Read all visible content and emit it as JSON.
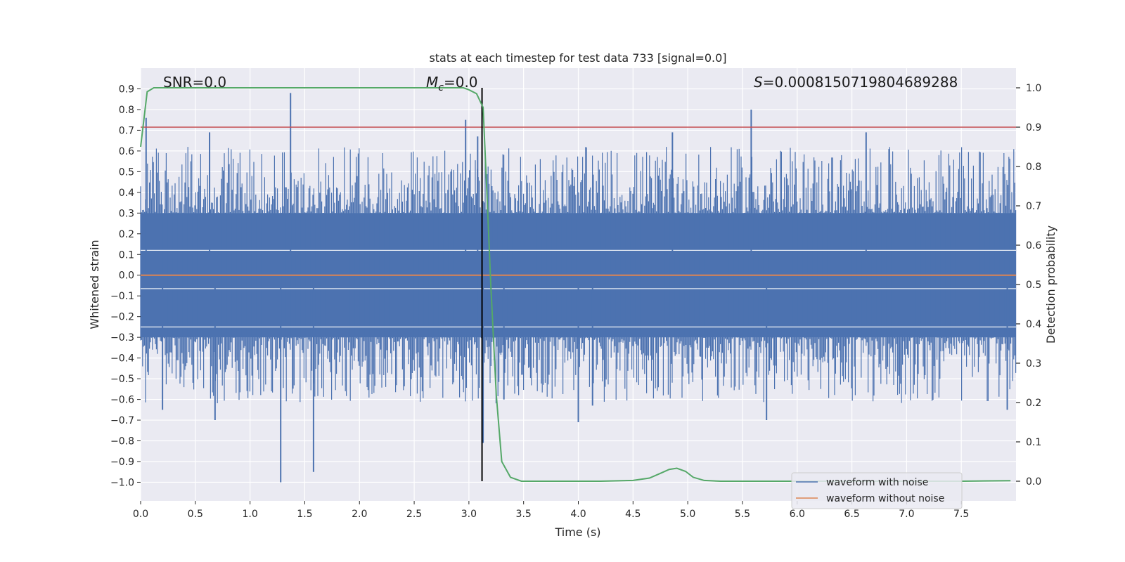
{
  "chart_data": {
    "type": "line",
    "title": "stats at each timestep for test data 733 [signal=0.0]",
    "xlabel": "Time (s)",
    "ylabel_left": "Whitened strain",
    "ylabel_right": "Detection probability",
    "xlim": [
      0,
      8
    ],
    "ylim_left": [
      -1.09,
      1.0
    ],
    "ylim_right": [
      -0.05,
      1.05
    ],
    "x_ticks": [
      "0.0",
      "0.5",
      "1.0",
      "1.5",
      "2.0",
      "2.5",
      "3.0",
      "3.5",
      "4.0",
      "4.5",
      "5.0",
      "5.5",
      "6.0",
      "6.5",
      "7.0",
      "7.5"
    ],
    "x_tick_values": [
      0,
      0.5,
      1,
      1.5,
      2,
      2.5,
      3,
      3.5,
      4,
      4.5,
      5,
      5.5,
      6,
      6.5,
      7,
      7.5
    ],
    "y_left_ticks": [
      "0.9",
      "0.8",
      "0.7",
      "0.6",
      "0.5",
      "0.4",
      "0.3",
      "0.2",
      "0.1",
      "0.0",
      "−0.1",
      "−0.2",
      "−0.3",
      "−0.4",
      "−0.5",
      "−0.6",
      "−0.7",
      "−0.8",
      "−0.9",
      "−1.0"
    ],
    "y_left_tick_values": [
      0.9,
      0.8,
      0.7,
      0.6,
      0.5,
      0.4,
      0.3,
      0.2,
      0.1,
      0.0,
      -0.1,
      -0.2,
      -0.3,
      -0.4,
      -0.5,
      -0.6,
      -0.7,
      -0.8,
      -0.9,
      -1.0
    ],
    "y_right_ticks": [
      "1.0",
      "0.9",
      "0.8",
      "0.7",
      "0.6",
      "0.5",
      "0.4",
      "0.3",
      "0.2",
      "0.1",
      "0.0"
    ],
    "y_right_tick_values": [
      1.0,
      0.9,
      0.8,
      0.7,
      0.6,
      0.5,
      0.4,
      0.3,
      0.2,
      0.1,
      0.0
    ],
    "series": [
      {
        "name": "waveform with noise",
        "color": "#4c72b0",
        "axis": "left",
        "description_values": "dense noise, core band approx +/-0.3, spikes up to 0.88 and down to -1.0",
        "band": [
          -0.3,
          0.3
        ],
        "spikes": [
          {
            "x": 1.37,
            "y": 0.88
          },
          {
            "x": 2.97,
            "y": 0.75
          },
          {
            "x": 3.08,
            "y": 0.67
          },
          {
            "x": 5.58,
            "y": 0.8
          },
          {
            "x": 0.05,
            "y": 0.76
          },
          {
            "x": 0.63,
            "y": 0.69
          },
          {
            "x": 4.86,
            "y": 0.69
          },
          {
            "x": 6.63,
            "y": 0.69
          },
          {
            "x": 1.28,
            "y": -1.0
          },
          {
            "x": 1.58,
            "y": -0.95
          },
          {
            "x": 3.13,
            "y": -0.81
          },
          {
            "x": 4.0,
            "y": -0.71
          },
          {
            "x": 5.72,
            "y": -0.7
          },
          {
            "x": 0.68,
            "y": -0.7
          },
          {
            "x": 0.2,
            "y": -0.65
          },
          {
            "x": 7.92,
            "y": -0.65
          },
          {
            "x": 3.32,
            "y": -0.6
          },
          {
            "x": 4.13,
            "y": -0.63
          }
        ]
      },
      {
        "name": "waveform without noise",
        "color": "#dd8452",
        "axis": "left",
        "x": [
          0,
          8
        ],
        "y": [
          0.0,
          0.0
        ]
      },
      {
        "name": "detection probability",
        "color": "#55a868",
        "axis": "right",
        "x": [
          0.0,
          0.03,
          0.06,
          0.12,
          0.2,
          0.5,
          1.0,
          1.5,
          2.0,
          2.5,
          2.85,
          2.95,
          3.0,
          3.07,
          3.13,
          3.17,
          3.2,
          3.25,
          3.3,
          3.38,
          3.48,
          3.6,
          3.8,
          4.2,
          4.5,
          4.65,
          4.75,
          4.83,
          4.9,
          4.98,
          5.05,
          5.15,
          5.3,
          5.6,
          6.0,
          6.5,
          7.0,
          7.5,
          7.95
        ],
        "y": [
          0.85,
          0.92,
          0.99,
          1.0,
          1.0,
          1.0,
          1.0,
          1.0,
          1.0,
          1.0,
          1.0,
          1.0,
          0.995,
          0.985,
          0.95,
          0.7,
          0.5,
          0.22,
          0.05,
          0.01,
          0.0,
          0.0,
          0.0,
          0.0,
          0.002,
          0.008,
          0.02,
          0.03,
          0.033,
          0.025,
          0.01,
          0.002,
          0.0,
          0.0,
          0.0,
          0.0,
          0.0,
          0.0,
          0.0015
        ]
      }
    ],
    "threshold": {
      "axis": "right",
      "y": 0.9,
      "color": "#c44e52"
    },
    "vertical_marker": {
      "x": 3.12,
      "color": "#000000"
    },
    "annotations": {
      "snr": "SNR=0.0",
      "mc_symbol": "M",
      "mc_sub": "c",
      "mc_value": "=0.0",
      "s_symbol": "S",
      "s_value": "=0.0008150719804689288"
    },
    "legend": {
      "position": "bottom-right",
      "entries": [
        {
          "label": "waveform with noise",
          "color": "#4c72b0"
        },
        {
          "label": "waveform without noise",
          "color": "#dd8452"
        }
      ]
    },
    "colors": {
      "background": "#eaeaf2",
      "grid": "#ffffff"
    }
  }
}
